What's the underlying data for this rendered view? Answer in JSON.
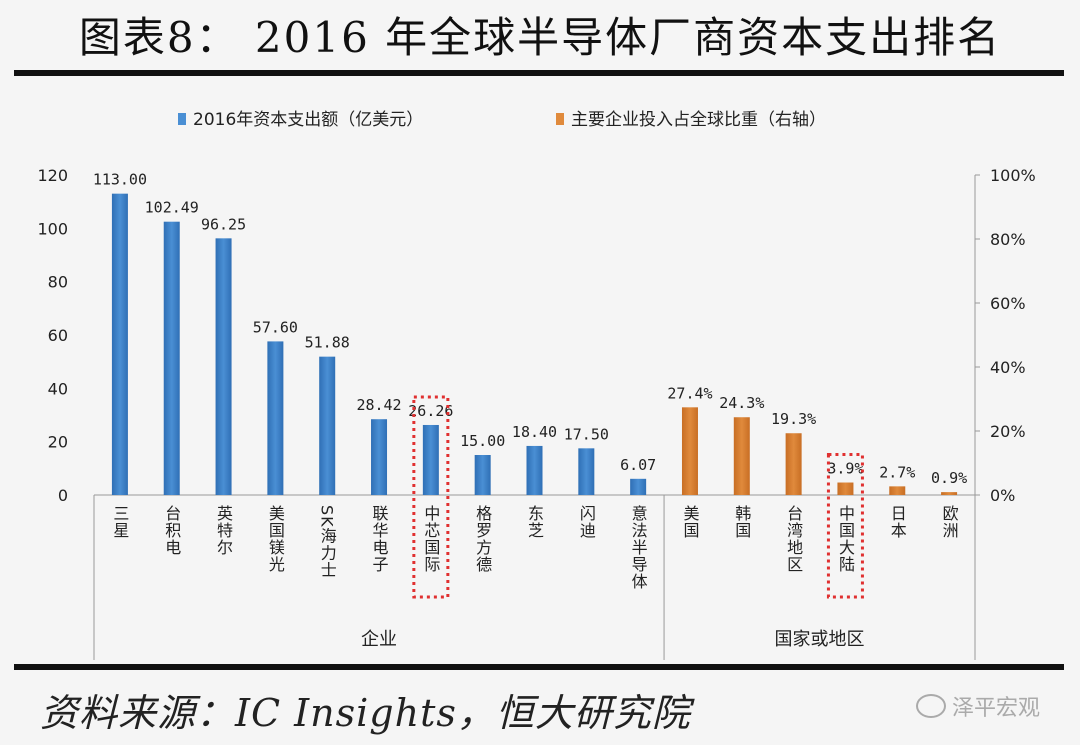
{
  "page": {
    "title": "图表8： 2016 年全球半导体厂商资本支出排名",
    "source": "资料来源：IC Insights，恒大研究院",
    "watermark": "泽平宏观"
  },
  "chart_data": {
    "type": "bar",
    "title": "图表8： 2016 年全球半导体厂商资本支出排名",
    "legend": [
      "2016年资本支出额（亿美元）",
      "主要企业投入占全球比重（右轴）"
    ],
    "legend_position": "top",
    "colors": {
      "series1": "#4a8fd4",
      "series2": "#e08a3c",
      "highlight": "#e03030"
    },
    "y_left": {
      "range": [
        0,
        120
      ],
      "ticks": [
        "0",
        "20",
        "40",
        "60",
        "80",
        "100",
        "120"
      ]
    },
    "y_right": {
      "range": [
        0,
        100
      ],
      "ticks": [
        "0%",
        "20%",
        "40%",
        "60%",
        "80%",
        "100%"
      ]
    },
    "groups": [
      {
        "label": "企业",
        "span": [
          0,
          10
        ]
      },
      {
        "label": "国家或地区",
        "span": [
          11,
          16
        ]
      }
    ],
    "series": [
      {
        "name": "2016年资本支出额（亿美元）",
        "axis": "left",
        "categories": [
          "三星",
          "台积电",
          "英特尔",
          "美国镁光",
          "SK海力士",
          "联华电子",
          "中芯国际",
          "格罗方德",
          "东芝",
          "闪迪",
          "意法半导体"
        ],
        "values": [
          113.0,
          102.49,
          96.25,
          57.6,
          51.88,
          28.42,
          26.26,
          15.0,
          18.4,
          17.5,
          6.07
        ],
        "labels": [
          "113.00",
          "102.49",
          "96.25",
          "57.60",
          "51.88",
          "28.42",
          "26.26",
          "15.00",
          "18.40",
          "17.50",
          "6.07"
        ]
      },
      {
        "name": "主要企业投入占全球比重（右轴）",
        "axis": "right",
        "categories": [
          "美国",
          "韩国",
          "台湾地区",
          "中国大陆",
          "日本",
          "欧洲"
        ],
        "values": [
          27.4,
          24.3,
          19.3,
          3.9,
          2.7,
          0.9
        ],
        "labels": [
          "27.4%",
          "24.3%",
          "19.3%",
          "3.9%",
          "2.7%",
          "0.9%"
        ]
      }
    ],
    "highlighted": [
      "中芯国际",
      "中国大陆"
    ]
  }
}
